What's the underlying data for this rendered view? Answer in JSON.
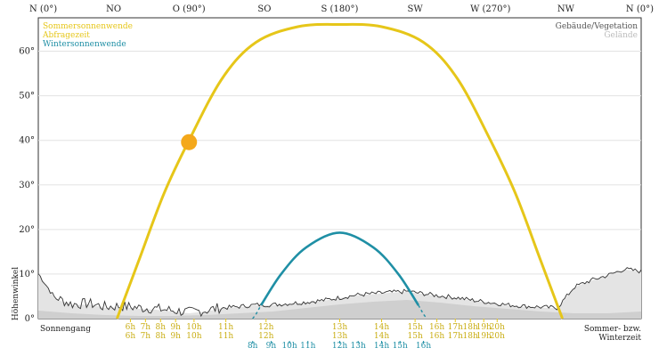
{
  "chart_data": {
    "type": "line",
    "x_axis_label": "",
    "y_axis_label": "Höhenwinkel",
    "x_range_deg": [
      0,
      360
    ],
    "y_range_deg": [
      0,
      70
    ],
    "grid": "horizontal",
    "compass_labels": [
      {
        "label": "N (0°)",
        "azimuth": 0
      },
      {
        "label": "NO",
        "azimuth": 45
      },
      {
        "label": "O (90°)",
        "azimuth": 90
      },
      {
        "label": "SO",
        "azimuth": 135
      },
      {
        "label": "S (180°)",
        "azimuth": 180
      },
      {
        "label": "SW",
        "azimuth": 225
      },
      {
        "label": "W (270°)",
        "azimuth": 270
      },
      {
        "label": "NW",
        "azimuth": 315
      },
      {
        "label": "N (0°)",
        "azimuth": 360
      }
    ],
    "y_ticks": [
      {
        "label": "0°",
        "value": 0
      },
      {
        "label": "10°",
        "value": 10
      },
      {
        "label": "20°",
        "value": 20
      },
      {
        "label": "30°",
        "value": 30
      },
      {
        "label": "40°",
        "value": 40
      },
      {
        "label": "50°",
        "value": 50
      },
      {
        "label": "60°",
        "value": 60
      }
    ],
    "legend_left": [
      {
        "label": "Sommersonnenwende",
        "color": "#e6c619"
      },
      {
        "label": "Abfragezeit",
        "color": "#e6c619"
      },
      {
        "label": "Wintersonnenwende",
        "color": "#1f8fa5"
      }
    ],
    "legend_right": [
      {
        "label": "Gebäude/Vegetation",
        "color": "#555555"
      },
      {
        "label": "Gelände",
        "color": "#bbbbbb"
      }
    ],
    "bottom_left_label": "Sonnengang",
    "bottom_right_label": [
      "Sommer- bzw.",
      "Winterzeit"
    ],
    "series": [
      {
        "name": "Sommersonnenwende",
        "color": "#e6c619",
        "points": [
          [
            47,
            0
          ],
          [
            60,
            13
          ],
          [
            75,
            28
          ],
          [
            90,
            40
          ],
          [
            110,
            54
          ],
          [
            130,
            62
          ],
          [
            155,
            65.5
          ],
          [
            180,
            66
          ],
          [
            205,
            65.5
          ],
          [
            230,
            62
          ],
          [
            250,
            54
          ],
          [
            270,
            40
          ],
          [
            285,
            28
          ],
          [
            300,
            13
          ],
          [
            313,
            0
          ]
        ]
      },
      {
        "name": "Wintersonnenwende",
        "color": "#1f8fa5",
        "points": [
          [
            128,
            0
          ],
          [
            130,
            1
          ],
          [
            133,
            3
          ],
          [
            145,
            10
          ],
          [
            160,
            16
          ],
          [
            180,
            19.3
          ],
          [
            200,
            16
          ],
          [
            215,
            10
          ],
          [
            227,
            3
          ],
          [
            230,
            1
          ],
          [
            232,
            0
          ]
        ]
      },
      {
        "name": "Gebäude/Vegetation",
        "color": "#555555",
        "points": [
          [
            0,
            10
          ],
          [
            10,
            4.5
          ],
          [
            20,
            3
          ],
          [
            30,
            3.2
          ],
          [
            40,
            2.4
          ],
          [
            50,
            2.6
          ],
          [
            60,
            2.2
          ],
          [
            70,
            2
          ],
          [
            80,
            1.6
          ],
          [
            90,
            1.2
          ],
          [
            100,
            1.6
          ],
          [
            110,
            2.3
          ],
          [
            120,
            2.6
          ],
          [
            130,
            3
          ],
          [
            140,
            3
          ],
          [
            150,
            3.3
          ],
          [
            160,
            3.6
          ],
          [
            170,
            4
          ],
          [
            180,
            4.6
          ],
          [
            190,
            5.2
          ],
          [
            200,
            5.5
          ],
          [
            210,
            5.8
          ],
          [
            220,
            6
          ],
          [
            230,
            5.5
          ],
          [
            240,
            5
          ],
          [
            250,
            4.6
          ],
          [
            260,
            4
          ],
          [
            270,
            3.5
          ],
          [
            280,
            3
          ],
          [
            290,
            2.7
          ],
          [
            300,
            2.5
          ],
          [
            310,
            2.3
          ],
          [
            320,
            7
          ],
          [
            330,
            8.5
          ],
          [
            340,
            9.6
          ],
          [
            350,
            11
          ],
          [
            360,
            10.5
          ]
        ]
      },
      {
        "name": "Gelände",
        "color": "#bbbbbb",
        "points": [
          [
            0,
            1.8
          ],
          [
            20,
            1.2
          ],
          [
            40,
            0.8
          ],
          [
            60,
            0.6
          ],
          [
            80,
            0.6
          ],
          [
            100,
            0.8
          ],
          [
            120,
            1.2
          ],
          [
            140,
            1.6
          ],
          [
            160,
            2.4
          ],
          [
            180,
            3.2
          ],
          [
            200,
            3.8
          ],
          [
            220,
            4.2
          ],
          [
            240,
            3.6
          ],
          [
            260,
            2.8
          ],
          [
            280,
            2.2
          ],
          [
            300,
            1.6
          ],
          [
            320,
            1.2
          ],
          [
            340,
            1.2
          ],
          [
            360,
            1.6
          ]
        ]
      }
    ],
    "current_sun": {
      "label": "Abfragezeit",
      "azimuth": 90,
      "altitude": 39.6,
      "color": "#f4a81b"
    },
    "hour_labels_summer": [
      {
        "label": "6h",
        "azimuth": 55
      },
      {
        "label": "7h",
        "azimuth": 64
      },
      {
        "label": "8h",
        "azimuth": 73
      },
      {
        "label": "9h",
        "azimuth": 82
      },
      {
        "label": "10h",
        "azimuth": 93
      },
      {
        "label": "11h",
        "azimuth": 112
      },
      {
        "label": "12h",
        "azimuth": 136
      },
      {
        "label": "13h",
        "azimuth": 180
      },
      {
        "label": "14h",
        "azimuth": 205
      },
      {
        "label": "15h",
        "azimuth": 225
      },
      {
        "label": "16h",
        "azimuth": 238
      },
      {
        "label": "17h",
        "azimuth": 249
      },
      {
        "label": "18h",
        "azimuth": 258
      },
      {
        "label": "19h",
        "azimuth": 266
      },
      {
        "label": "20h",
        "azimuth": 274
      }
    ],
    "hour_labels_summer_second_row": [
      "6h",
      "7h",
      "8h",
      "9h",
      "10h",
      "11h",
      "12h",
      "13h",
      "14h",
      "15h",
      "16h",
      "17h",
      "18h",
      "19h",
      "20h"
    ],
    "hour_labels_winter": [
      {
        "label": "8h",
        "azimuth": 128
      },
      {
        "label": "9h",
        "azimuth": 139
      },
      {
        "label": "10h",
        "azimuth": 150
      },
      {
        "label": "11h",
        "azimuth": 161
      },
      {
        "label": "12h",
        "azimuth": 180
      },
      {
        "label": "13h",
        "azimuth": 191
      },
      {
        "label": "14h",
        "azimuth": 205
      },
      {
        "label": "15h",
        "azimuth": 216
      },
      {
        "label": "16h",
        "azimuth": 230
      }
    ]
  }
}
